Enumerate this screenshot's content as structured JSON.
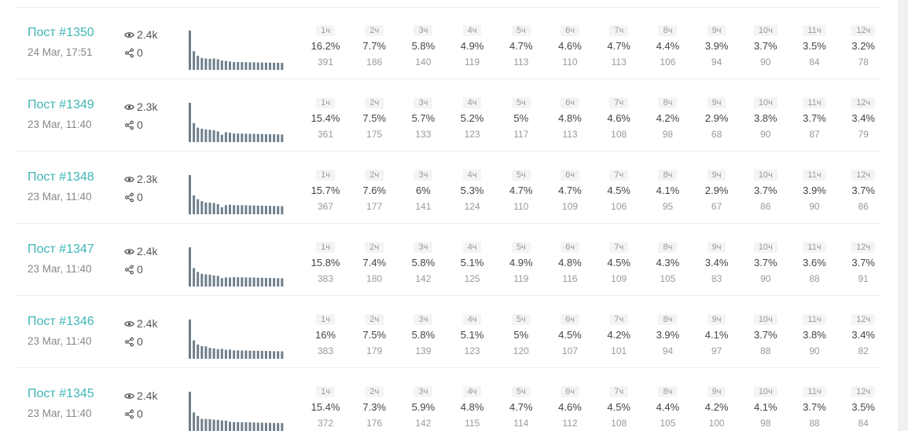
{
  "colors": {
    "accent": "#3fb5b5",
    "spark_bar": "#6f7f8a"
  },
  "hour_labels": [
    "1ч",
    "2ч",
    "3ч",
    "4ч",
    "5ч",
    "6ч",
    "7ч",
    "8ч",
    "9ч",
    "10ч",
    "11ч",
    "12ч"
  ],
  "posts": [
    {
      "title": "Пост #1350",
      "date": "24 Mar, 17:51",
      "views": "2.4k",
      "shares": "0",
      "pct": [
        "16.2%",
        "7.7%",
        "5.8%",
        "4.9%",
        "4.7%",
        "4.6%",
        "4.7%",
        "4.4%",
        "3.9%",
        "3.7%",
        "3.5%",
        "3.2%"
      ],
      "counts": [
        "391",
        "186",
        "140",
        "119",
        "113",
        "110",
        "113",
        "106",
        "94",
        "90",
        "84",
        "78"
      ]
    },
    {
      "title": "Пост #1349",
      "date": "23 Mar, 11:40",
      "views": "2.3k",
      "shares": "0",
      "pct": [
        "15.4%",
        "7.5%",
        "5.7%",
        "5.2%",
        "5%",
        "4.8%",
        "4.6%",
        "4.2%",
        "2.9%",
        "3.8%",
        "3.7%",
        "3.4%"
      ],
      "counts": [
        "361",
        "175",
        "133",
        "123",
        "117",
        "113",
        "108",
        "98",
        "68",
        "90",
        "87",
        "79"
      ]
    },
    {
      "title": "Пост #1348",
      "date": "23 Mar, 11:40",
      "views": "2.3k",
      "shares": "0",
      "pct": [
        "15.7%",
        "7.6%",
        "6%",
        "5.3%",
        "4.7%",
        "4.7%",
        "4.5%",
        "4.1%",
        "2.9%",
        "3.7%",
        "3.9%",
        "3.7%"
      ],
      "counts": [
        "367",
        "177",
        "141",
        "124",
        "110",
        "109",
        "106",
        "95",
        "67",
        "86",
        "90",
        "86"
      ]
    },
    {
      "title": "Пост #1347",
      "date": "23 Mar, 11:40",
      "views": "2.4k",
      "shares": "0",
      "pct": [
        "15.8%",
        "7.4%",
        "5.8%",
        "5.1%",
        "4.9%",
        "4.8%",
        "4.5%",
        "4.3%",
        "3.4%",
        "3.7%",
        "3.6%",
        "3.7%"
      ],
      "counts": [
        "383",
        "180",
        "142",
        "125",
        "119",
        "116",
        "109",
        "105",
        "83",
        "90",
        "88",
        "91"
      ]
    },
    {
      "title": "Пост #1346",
      "date": "23 Mar, 11:40",
      "views": "2.4k",
      "shares": "0",
      "pct": [
        "16%",
        "7.5%",
        "5.8%",
        "5.1%",
        "5%",
        "4.5%",
        "4.2%",
        "3.9%",
        "4.1%",
        "3.7%",
        "3.8%",
        "3.4%"
      ],
      "counts": [
        "383",
        "179",
        "139",
        "123",
        "120",
        "107",
        "101",
        "94",
        "97",
        "88",
        "90",
        "82"
      ]
    },
    {
      "title": "Пост #1345",
      "date": "23 Mar, 11:40",
      "views": "2.4k",
      "shares": "0",
      "pct": [
        "15.4%",
        "7.3%",
        "5.9%",
        "4.8%",
        "4.7%",
        "4.6%",
        "4.5%",
        "4.4%",
        "4.2%",
        "4.1%",
        "3.7%",
        "3.5%"
      ],
      "counts": [
        "372",
        "176",
        "142",
        "115",
        "114",
        "112",
        "108",
        "105",
        "100",
        "98",
        "88",
        "84"
      ]
    }
  ]
}
